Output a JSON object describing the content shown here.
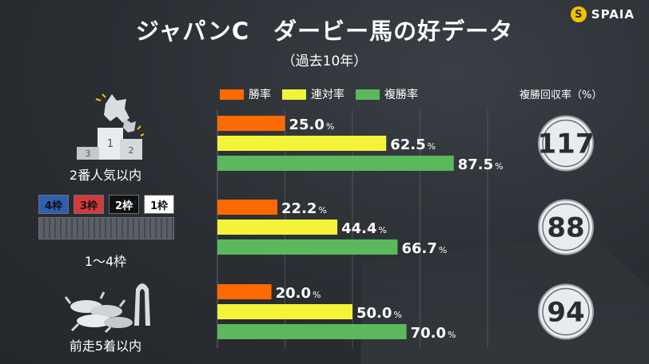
{
  "logo": {
    "mark": "S",
    "text": "SPAIA"
  },
  "title": "ジャパンC　ダービー馬の好データ",
  "subtitle": "（過去10年）",
  "legend": [
    {
      "name": "勝率",
      "color": "#ff6a00"
    },
    {
      "name": "連対率",
      "color": "#f3f33a"
    },
    {
      "name": "複勝率",
      "color": "#5cb85c"
    }
  ],
  "roi_header": "複勝回収率（%）",
  "frames": [
    {
      "label": "4枠",
      "color": "#2f5fb3"
    },
    {
      "label": "3枠",
      "color": "#d43a3a"
    },
    {
      "label": "2枠",
      "color": "#111111"
    },
    {
      "label": "1枠",
      "color": "#ffffff"
    }
  ],
  "podium_labels": [
    "1",
    "2",
    "3"
  ],
  "chart_data": {
    "type": "bar",
    "orientation": "horizontal",
    "categories": [
      "2番人気以内",
      "1～4枠",
      "前走5着以内"
    ],
    "series": [
      {
        "name": "勝率",
        "values": [
          25.0,
          22.2,
          20.0
        ]
      },
      {
        "name": "連対率",
        "values": [
          62.5,
          44.4,
          50.0
        ]
      },
      {
        "name": "複勝率",
        "values": [
          87.5,
          66.7,
          70.0
        ]
      }
    ],
    "value_unit": "%",
    "roi": [
      117,
      88,
      94
    ],
    "xlim": [
      0,
      100
    ],
    "grid": true,
    "legend_position": "top"
  }
}
